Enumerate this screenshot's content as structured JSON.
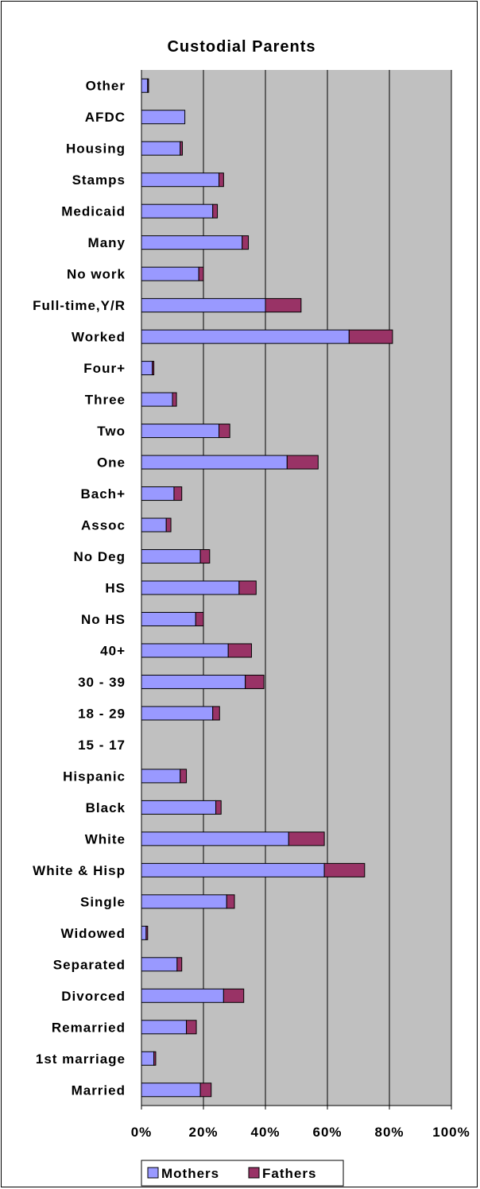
{
  "chart_data": {
    "type": "bar",
    "stacked": true,
    "orientation": "horizontal",
    "title": "Custodial Parents",
    "categories": [
      "Other",
      "AFDC",
      "Housing",
      "Stamps",
      "Medicaid",
      "Many",
      "No work",
      "Full-time,Y/R",
      "Worked",
      "Four+",
      "Three",
      "Two",
      "One",
      "Bach+",
      "Assoc",
      "No Deg",
      "HS",
      "No HS",
      "40+",
      "30 - 39",
      "18 - 29",
      "15 - 17",
      "Hispanic",
      "Black",
      "White",
      "White & Hisp",
      "Single",
      "Widowed",
      "Separated",
      "Divorced",
      "Remarried",
      "1st marriage",
      "Married"
    ],
    "series": [
      {
        "name": "Mothers",
        "color": "#9999ff",
        "values": [
          2,
          14,
          12.5,
          25,
          23,
          32.5,
          18.5,
          40,
          67,
          3.5,
          10,
          25,
          47,
          10.5,
          8,
          19,
          31.5,
          17.5,
          28,
          33.5,
          23,
          0,
          12.5,
          24,
          47.5,
          59,
          27.5,
          1.5,
          11.5,
          26.5,
          14.5,
          4,
          19
        ]
      },
      {
        "name": "Fathers",
        "color": "#993366",
        "values": [
          0.3,
          0,
          0.7,
          1.5,
          1.5,
          2,
          1.5,
          11.5,
          14,
          0.5,
          1.3,
          3.5,
          10,
          2.5,
          1.5,
          3,
          5.5,
          2.5,
          7.5,
          6,
          2.2,
          0,
          2,
          1.7,
          11.5,
          13,
          2.5,
          0.5,
          1.5,
          6.5,
          3.2,
          0.6,
          3.5
        ]
      }
    ],
    "xlim": [
      0,
      100
    ],
    "x_ticks": [
      "0%",
      "20%",
      "40%",
      "60%",
      "80%",
      "100%"
    ],
    "grid": true,
    "legend": "bottom",
    "plot_background": "#c0c0c0"
  }
}
